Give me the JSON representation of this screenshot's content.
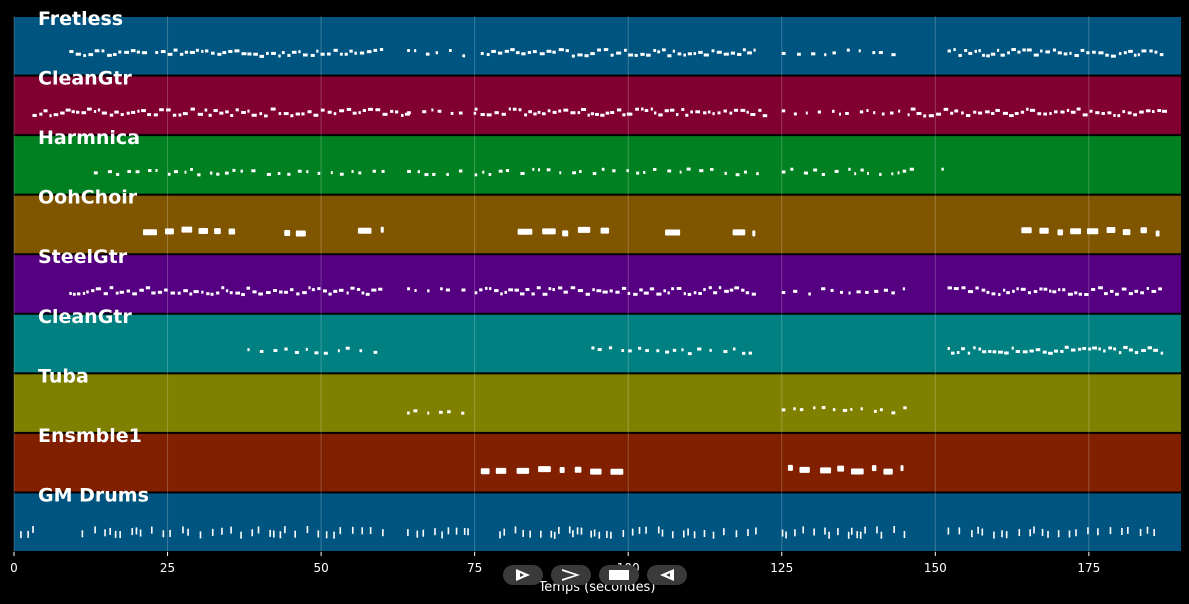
{
  "chart_data": {
    "type": "piano-roll",
    "title": "",
    "xlabel": "Temps (secondes)",
    "ylabel": "",
    "xlim": [
      0,
      190
    ],
    "xticks": [
      0,
      25,
      50,
      75,
      100,
      125,
      150,
      175
    ],
    "grid": true,
    "tracks": [
      {
        "name": "Fretless",
        "color": "#005580",
        "segments": [
          [
            9,
            22,
            "dense"
          ],
          [
            23,
            60,
            "dense"
          ],
          [
            64,
            74,
            "sparse"
          ],
          [
            76,
            121,
            "dense"
          ],
          [
            125,
            145,
            "sparse"
          ],
          [
            152,
            187,
            "dense"
          ]
        ]
      },
      {
        "name": "CleanGtr",
        "color": "#800030",
        "segments": [
          [
            3,
            38,
            "dense"
          ],
          [
            38,
            64,
            "dense"
          ],
          [
            64,
            75,
            "sparse"
          ],
          [
            75,
            100,
            "dense"
          ],
          [
            100,
            122,
            "dense"
          ],
          [
            125,
            146,
            "sparse"
          ],
          [
            146,
            187,
            "dense"
          ]
        ]
      },
      {
        "name": "Harmnica",
        "color": "#008020",
        "segments": [
          [
            13,
            60,
            "sparse"
          ],
          [
            64,
            73,
            "sparse"
          ],
          [
            75,
            121,
            "sparse"
          ],
          [
            125,
            146,
            "sparse"
          ],
          [
            151,
            153,
            "sparse"
          ]
        ]
      },
      {
        "name": "OohChoir",
        "color": "#805500",
        "segments": [
          [
            21,
            37,
            "long"
          ],
          [
            44,
            48,
            "long"
          ],
          [
            56,
            60,
            "long"
          ],
          [
            82,
            98,
            "long"
          ],
          [
            106,
            110,
            "long"
          ],
          [
            117,
            121,
            "long"
          ],
          [
            164,
            187,
            "long"
          ]
        ]
      },
      {
        "name": "SteelGtr",
        "color": "#550080",
        "segments": [
          [
            9,
            60,
            "dense"
          ],
          [
            64,
            75,
            "sparse"
          ],
          [
            75,
            121,
            "dense"
          ],
          [
            125,
            145,
            "sparse"
          ],
          [
            152,
            187,
            "dense"
          ]
        ]
      },
      {
        "name": "CleanGtr",
        "color": "#008080",
        "segments": [
          [
            38,
            60,
            "sparse"
          ],
          [
            94,
            100,
            "sparse"
          ],
          [
            100,
            121,
            "sparse"
          ],
          [
            152,
            187,
            "dense"
          ]
        ]
      },
      {
        "name": "Tuba",
        "color": "#808000",
        "segments": [
          [
            64,
            74,
            "sparse"
          ],
          [
            125,
            145,
            "sparse"
          ]
        ]
      },
      {
        "name": "Ensmble1",
        "color": "#802000",
        "segments": [
          [
            76,
            100,
            "long"
          ],
          [
            126,
            145,
            "long"
          ]
        ]
      },
      {
        "name": "GM Drums",
        "color": "#005580",
        "segments": [
          [
            1,
            3,
            "hits"
          ],
          [
            11,
            60,
            "hits"
          ],
          [
            64,
            74,
            "hits"
          ],
          [
            79,
            121,
            "hits"
          ],
          [
            125,
            145,
            "hits"
          ],
          [
            152,
            187,
            "hits"
          ]
        ]
      }
    ]
  },
  "controls": [
    {
      "name": "play-outline",
      "icon": "play-outline-icon"
    },
    {
      "name": "forward",
      "icon": "chevron-right-icon"
    },
    {
      "name": "stop",
      "icon": "stop-icon"
    },
    {
      "name": "back",
      "icon": "play-left-outline-icon"
    }
  ]
}
